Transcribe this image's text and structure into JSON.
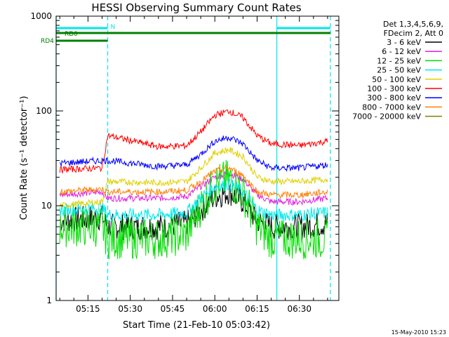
{
  "chart_data": {
    "type": "line",
    "title": "HESSI Observing Summary Count Rates",
    "xlabel": "Start Time (21-Feb-10 05:03:42)",
    "ylabel": "Count Rate (s⁻¹ detector⁻¹)",
    "x_unit": "UT minutes",
    "xlim": [
      "05:03:42",
      "06:44:00"
    ],
    "x_ticks": [
      "05:15",
      "05:30",
      "05:45",
      "06:00",
      "06:15",
      "06:30"
    ],
    "y_scale": "log",
    "ylim": [
      1,
      1000
    ],
    "y_ticks": [
      "1",
      "10",
      "100",
      "1000"
    ],
    "grid": false,
    "legend": {
      "placement": "right-outside",
      "header": [
        "Det 1,3,4,5,6,9,",
        "FDecim 2, Att 0"
      ]
    },
    "series": [
      {
        "name": "3 - 6 keV",
        "color": "#000000",
        "x": [
          "05:05",
          "05:20",
          "05:22",
          "05:40",
          "05:50",
          "05:55",
          "06:00",
          "06:05",
          "06:10",
          "06:15",
          "06:20",
          "06:30",
          "06:40"
        ],
        "y": [
          7,
          7.5,
          6,
          6,
          6.5,
          9,
          12.5,
          14,
          11,
          7,
          6,
          6,
          6.5
        ]
      },
      {
        "name": "6 - 12 keV",
        "color": "#e020e0",
        "x": [
          "05:05",
          "05:20",
          "05:22",
          "05:40",
          "05:50",
          "05:55",
          "06:00",
          "06:05",
          "06:10",
          "06:15",
          "06:20",
          "06:30",
          "06:40"
        ],
        "y": [
          13,
          14,
          12,
          12,
          12.5,
          16,
          20,
          22,
          19,
          13,
          11,
          11,
          12
        ]
      },
      {
        "name": "12 - 25 keV",
        "color": "#00e000",
        "x": [
          "05:05",
          "05:20",
          "05:22",
          "05:40",
          "05:50",
          "05:55",
          "06:00",
          "06:05",
          "06:10",
          "06:15",
          "06:20",
          "06:30",
          "06:40"
        ],
        "y": [
          6,
          6,
          4.5,
          4.5,
          5,
          10,
          17,
          19,
          14,
          6,
          4.5,
          4.5,
          4.5
        ]
      },
      {
        "name": "25 - 50 keV",
        "color": "#00e8e8",
        "x": [
          "05:05",
          "05:20",
          "05:22",
          "05:40",
          "05:50",
          "05:55",
          "06:00",
          "06:05",
          "06:10",
          "06:15",
          "06:20",
          "06:30",
          "06:40"
        ],
        "y": [
          9,
          9.5,
          8,
          8,
          8.5,
          12,
          16,
          17,
          14,
          9,
          8,
          8,
          8.5
        ]
      },
      {
        "name": "50 - 100 keV",
        "color": "#e0d000",
        "x": [
          "05:05",
          "05:20",
          "05:22",
          "05:40",
          "05:50",
          "05:55",
          "06:00",
          "06:05",
          "06:10",
          "06:15",
          "06:20",
          "06:30",
          "06:40"
        ],
        "y": [
          10,
          11,
          18,
          17.5,
          18,
          25,
          36,
          39,
          33,
          20,
          18,
          18,
          19
        ]
      },
      {
        "name": "100 - 300 keV",
        "color": "#ff0000",
        "x": [
          "05:05",
          "05:20",
          "05:22",
          "05:40",
          "05:50",
          "05:55",
          "06:00",
          "06:05",
          "06:10",
          "06:15",
          "06:20",
          "06:30",
          "06:40"
        ],
        "y": [
          24,
          25,
          55,
          42,
          43,
          60,
          90,
          100,
          85,
          55,
          45,
          43,
          48
        ]
      },
      {
        "name": "300 - 800 keV",
        "color": "#0000ff",
        "x": [
          "05:05",
          "05:20",
          "05:22",
          "05:40",
          "05:50",
          "05:55",
          "06:00",
          "06:05",
          "06:10",
          "06:15",
          "06:20",
          "06:30",
          "06:40"
        ],
        "y": [
          28,
          30,
          30,
          26,
          27,
          35,
          48,
          53,
          45,
          30,
          25,
          25,
          27
        ]
      },
      {
        "name": "800 - 7000 keV",
        "color": "#ff8000",
        "x": [
          "05:05",
          "05:20",
          "05:22",
          "05:40",
          "05:50",
          "05:55",
          "06:00",
          "06:05",
          "06:10",
          "06:15",
          "06:20",
          "06:30",
          "06:40"
        ],
        "y": [
          14,
          15,
          14,
          14,
          14.5,
          18,
          23,
          25,
          21,
          14,
          13,
          13,
          14
        ]
      },
      {
        "name": "7000 - 20000 keV",
        "color": "#808000",
        "x": [],
        "y": []
      }
    ],
    "annotations": {
      "attenuator_bars": [
        {
          "label": "N",
          "color": "#00e8e8",
          "start": "05:03:42",
          "end": "05:22:00",
          "position": "top"
        },
        {
          "label": "",
          "color": "#00e8e8",
          "start": "06:22:00",
          "end": "06:41:00",
          "position": "top"
        },
        {
          "label": "RD0",
          "color": "#008000",
          "start": "05:03:42",
          "end": "05:22:00",
          "position": "top"
        },
        {
          "label": "",
          "color": "#008000",
          "start": "05:22:00",
          "end": "06:41:00",
          "position": "top"
        },
        {
          "label": "RD4",
          "color": "#008000",
          "start": "05:03:42",
          "end": "05:22:00",
          "position": "top"
        }
      ],
      "vertical_markers": [
        {
          "time": "05:03:42",
          "color": "#00e8e8",
          "style": "solid"
        },
        {
          "time": "05:22:00",
          "color": "#00e8e8",
          "style": "dashed"
        },
        {
          "time": "06:22:00",
          "color": "#00e8e8",
          "style": "solid"
        },
        {
          "time": "06:41:00",
          "color": "#00e8e8",
          "style": "dashed"
        }
      ]
    }
  },
  "footer": {
    "timestamp": "15-May-2010 15:23"
  }
}
